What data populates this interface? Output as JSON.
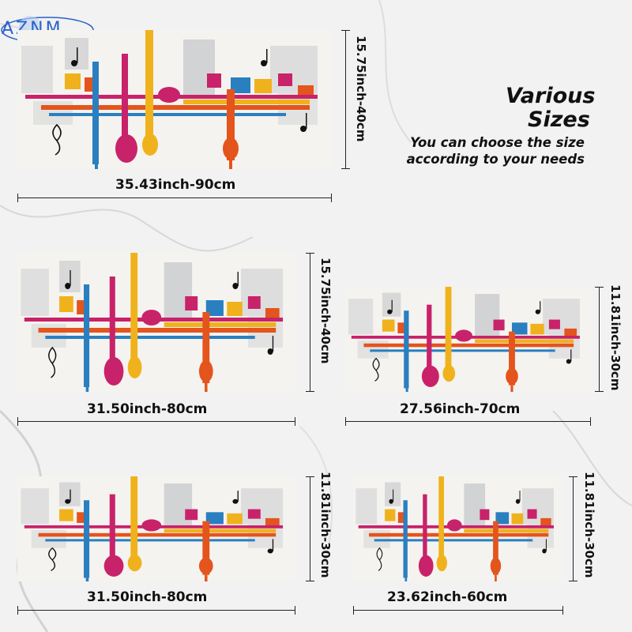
{
  "brand": {
    "logo_text": "AZNM",
    "accent": "#2a63c9"
  },
  "headline": {
    "line1": "Various",
    "line2": "Sizes",
    "sub1": "You can choose the size",
    "sub2": "according to your needs"
  },
  "products": [
    {
      "width_label": "35.43inch-90cm",
      "height_label": "15.75inch-40cm"
    },
    {
      "width_label": "31.50inch-80cm",
      "height_label": "15.75inch-40cm"
    },
    {
      "width_label": "27.56inch-70cm",
      "height_label": "11.81inch-30cm"
    },
    {
      "width_label": "31.50inch-80cm",
      "height_label": "11.81inch-30cm"
    },
    {
      "width_label": "23.62inch-60cm",
      "height_label": "11.81inch-30cm"
    }
  ],
  "colors": {
    "magenta": "#c8226a",
    "yellow": "#f0b21c",
    "orange": "#e4541d",
    "blue": "#2a7fc0",
    "gray": "#9aa0a8"
  }
}
